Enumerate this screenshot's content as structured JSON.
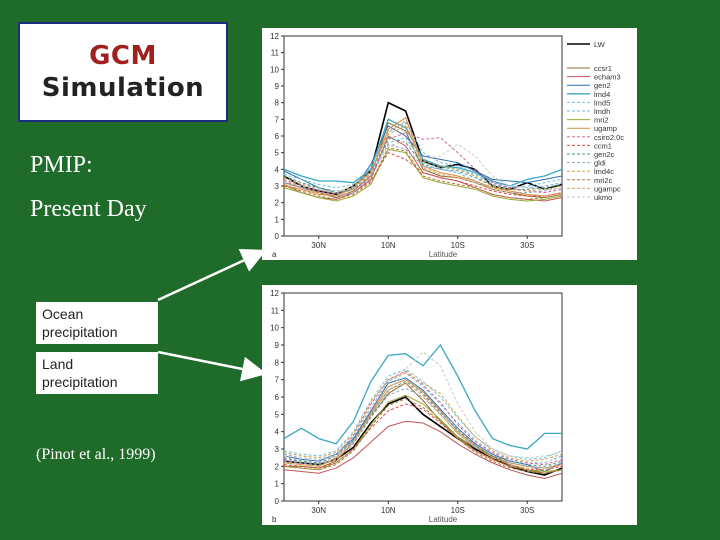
{
  "slide": {
    "title_line1": "GCM",
    "title_line2": "Simulation",
    "subtitle1": "PMIP:",
    "subtitle2": "Present Day",
    "ocean_label": "Ocean precipitation",
    "land_label": "Land precipitation",
    "citation": "(Pinot et al., 1999)",
    "colors": {
      "background": "#1f6b2a",
      "title_accent": "#a02020",
      "border": "#1a2d80"
    }
  },
  "chart_data": [
    {
      "type": "line",
      "panel_label": "a",
      "xlabel": "Latitude",
      "x": [
        40,
        35,
        30,
        25,
        20,
        15,
        10,
        5,
        0,
        -5,
        -10,
        -15,
        -20,
        -25,
        -30,
        -35,
        -40
      ],
      "x_ticks": [
        {
          "value": 30,
          "label": "30N"
        },
        {
          "value": 10,
          "label": "10N"
        },
        {
          "value": -10,
          "label": "10S"
        },
        {
          "value": -30,
          "label": "30S"
        }
      ],
      "ylim": [
        0,
        12
      ],
      "y_ticks": [
        0,
        1,
        2,
        3,
        4,
        5,
        6,
        7,
        8,
        9,
        10,
        11,
        12
      ],
      "xlim": [
        40,
        -40
      ],
      "legend_position": "right",
      "series": [
        {
          "name": "LW",
          "color": "#000000",
          "dash": "",
          "width": 1.6,
          "values": [
            3.6,
            3.0,
            2.7,
            2.5,
            3.0,
            3.9,
            8.0,
            7.5,
            4.5,
            4.1,
            4.3,
            4.0,
            3.0,
            2.8,
            3.2,
            2.8,
            3.1
          ]
        },
        {
          "name": "ccsr1",
          "color": "#8b6d2e",
          "dash": "",
          "width": 1,
          "values": [
            3.2,
            2.9,
            2.6,
            2.3,
            2.7,
            3.6,
            6.8,
            6.3,
            4.0,
            3.6,
            3.5,
            3.2,
            2.8,
            2.6,
            2.4,
            2.3,
            2.5
          ]
        },
        {
          "name": "echam3",
          "color": "#c25555",
          "dash": "",
          "width": 1,
          "values": [
            3.1,
            2.6,
            2.3,
            2.2,
            2.6,
            3.4,
            6.0,
            5.4,
            3.8,
            3.5,
            3.3,
            2.9,
            2.5,
            2.3,
            2.2,
            2.1,
            2.3
          ]
        },
        {
          "name": "gen2",
          "color": "#2f6db5",
          "dash": "",
          "width": 1,
          "values": [
            3.9,
            3.4,
            2.9,
            2.6,
            2.8,
            4.3,
            6.6,
            6.0,
            4.8,
            4.6,
            4.4,
            3.9,
            3.4,
            3.3,
            3.2,
            3.4,
            3.6
          ]
        },
        {
          "name": "lmd4",
          "color": "#3aa6c7",
          "dash": "",
          "width": 1.3,
          "values": [
            4.0,
            3.6,
            3.3,
            3.3,
            3.2,
            4.0,
            7.0,
            6.5,
            4.6,
            4.2,
            4.1,
            3.8,
            3.3,
            3.0,
            3.4,
            3.6,
            4.0
          ]
        },
        {
          "name": "lmd5",
          "color": "#6cc2d9",
          "dash": "3,2",
          "width": 1,
          "values": [
            3.7,
            3.4,
            3.1,
            2.9,
            3.1,
            3.8,
            5.6,
            5.9,
            4.4,
            4.1,
            4.0,
            3.7,
            3.1,
            2.9,
            3.0,
            3.2,
            3.4
          ]
        },
        {
          "name": "lmdh",
          "color": "#7fb2e0",
          "dash": "3,2",
          "width": 1,
          "values": [
            3.5,
            3.1,
            2.9,
            2.7,
            2.8,
            4.2,
            6.2,
            6.9,
            5.0,
            4.4,
            4.2,
            3.8,
            3.2,
            3.0,
            2.9,
            3.0,
            3.2
          ]
        },
        {
          "name": "mri2",
          "color": "#9aa832",
          "dash": "",
          "width": 1,
          "values": [
            2.9,
            2.6,
            2.3,
            2.1,
            2.4,
            3.1,
            5.2,
            5.0,
            3.5,
            3.2,
            3.0,
            2.8,
            2.4,
            2.2,
            2.1,
            2.2,
            2.4
          ]
        },
        {
          "name": "ugamp",
          "color": "#d98a3a",
          "dash": "",
          "width": 1,
          "values": [
            3.0,
            2.8,
            2.5,
            2.4,
            2.9,
            3.8,
            6.4,
            7.1,
            4.2,
            3.8,
            3.6,
            3.3,
            2.9,
            2.7,
            2.5,
            2.4,
            2.6
          ]
        },
        {
          "name": "csiro2.0c",
          "color": "#d36b8c",
          "dash": "3,2",
          "width": 1,
          "values": [
            3.4,
            3.0,
            2.7,
            2.5,
            2.9,
            3.6,
            5.8,
            6.2,
            5.8,
            5.9,
            5.0,
            4.0,
            3.2,
            2.9,
            2.7,
            2.6,
            2.8
          ]
        },
        {
          "name": "ccm1",
          "color": "#d94a4a",
          "dash": "3,2",
          "width": 1,
          "values": [
            3.3,
            2.9,
            2.6,
            2.4,
            2.6,
            3.3,
            5.0,
            4.6,
            3.8,
            3.5,
            3.3,
            3.0,
            2.7,
            2.5,
            2.4,
            2.4,
            2.6
          ]
        },
        {
          "name": "gen2c",
          "color": "#4a9a8a",
          "dash": "3,2",
          "width": 1,
          "values": [
            3.6,
            3.2,
            2.9,
            2.6,
            2.8,
            3.7,
            5.9,
            5.6,
            4.3,
            4.0,
            3.9,
            3.5,
            3.0,
            2.8,
            2.8,
            2.9,
            3.1
          ]
        },
        {
          "name": "gldi",
          "color": "#8aa6c9",
          "dash": "3,2",
          "width": 1,
          "values": [
            3.2,
            2.9,
            2.6,
            2.4,
            2.6,
            3.5,
            5.5,
            5.2,
            4.2,
            4.0,
            3.8,
            3.3,
            2.8,
            2.6,
            2.6,
            2.7,
            2.9
          ]
        },
        {
          "name": "lmd4c",
          "color": "#d4a24a",
          "dash": "3,2",
          "width": 1,
          "values": [
            3.5,
            3.1,
            2.8,
            2.6,
            3.0,
            3.9,
            6.1,
            6.6,
            4.5,
            4.2,
            4.0,
            3.6,
            3.0,
            2.8,
            2.7,
            2.8,
            3.0
          ]
        },
        {
          "name": "mri2c",
          "color": "#b07a3a",
          "dash": "3,2",
          "width": 1,
          "values": [
            3.0,
            2.7,
            2.4,
            2.2,
            2.5,
            3.2,
            5.3,
            5.1,
            3.6,
            3.3,
            3.1,
            2.9,
            2.5,
            2.3,
            2.2,
            2.3,
            2.5
          ]
        },
        {
          "name": "ugampc",
          "color": "#e0a060",
          "dash": "3,2",
          "width": 1,
          "values": [
            3.1,
            2.8,
            2.6,
            2.4,
            2.8,
            3.7,
            6.3,
            6.8,
            4.1,
            3.7,
            3.5,
            3.2,
            2.8,
            2.6,
            2.5,
            2.4,
            2.6
          ]
        },
        {
          "name": "ukmo",
          "color": "#c9c9c9",
          "dash": "3,2",
          "width": 1,
          "values": [
            3.3,
            3.0,
            2.8,
            2.6,
            2.9,
            3.8,
            5.4,
            5.7,
            4.6,
            4.8,
            5.5,
            4.8,
            3.6,
            3.0,
            2.9,
            2.8,
            2.9
          ]
        }
      ]
    },
    {
      "type": "line",
      "panel_label": "b",
      "xlabel": "Latitude",
      "x": [
        40,
        35,
        30,
        25,
        20,
        15,
        10,
        5,
        0,
        -5,
        -10,
        -15,
        -20,
        -25,
        -30,
        -35,
        -40
      ],
      "x_ticks": [
        {
          "value": 30,
          "label": "30N"
        },
        {
          "value": 10,
          "label": "10N"
        },
        {
          "value": -10,
          "label": "10S"
        },
        {
          "value": -30,
          "label": "30S"
        }
      ],
      "ylim": [
        0,
        12
      ],
      "y_ticks": [
        0,
        1,
        2,
        3,
        4,
        5,
        6,
        7,
        8,
        9,
        10,
        11,
        12
      ],
      "xlim": [
        40,
        -40
      ],
      "series": [
        {
          "name": "LW",
          "color": "#000000",
          "dash": "",
          "width": 1.6,
          "values": [
            2.3,
            2.2,
            2.1,
            2.4,
            3.1,
            4.5,
            5.6,
            6.0,
            5.0,
            4.3,
            3.6,
            3.0,
            2.5,
            2.0,
            1.7,
            1.5,
            1.9
          ]
        },
        {
          "name": "ccsr1",
          "color": "#8b6d2e",
          "dash": "",
          "width": 1,
          "values": [
            2.0,
            2.0,
            1.9,
            2.3,
            3.4,
            4.9,
            6.2,
            6.8,
            5.8,
            4.6,
            3.7,
            3.1,
            2.6,
            2.1,
            1.8,
            1.6,
            1.8
          ]
        },
        {
          "name": "echam3",
          "color": "#c25555",
          "dash": "",
          "width": 1,
          "values": [
            1.8,
            1.7,
            1.6,
            1.9,
            2.5,
            3.4,
            4.3,
            4.6,
            4.5,
            4.0,
            3.3,
            2.7,
            2.2,
            1.8,
            1.5,
            1.3,
            1.6
          ]
        },
        {
          "name": "gen2",
          "color": "#2f6db5",
          "dash": "",
          "width": 1,
          "values": [
            2.6,
            2.4,
            2.3,
            2.7,
            3.6,
            5.2,
            6.8,
            7.1,
            6.4,
            5.3,
            4.2,
            3.3,
            2.7,
            2.3,
            2.1,
            1.7,
            2.2
          ]
        },
        {
          "name": "lmd4",
          "color": "#3aa6c7",
          "dash": "",
          "width": 1.3,
          "values": [
            3.6,
            4.2,
            3.6,
            3.3,
            4.6,
            6.9,
            8.4,
            8.5,
            7.8,
            9.0,
            7.2,
            5.2,
            3.6,
            3.2,
            3.0,
            3.9,
            3.9
          ]
        },
        {
          "name": "lmd5",
          "color": "#6cc2d9",
          "dash": "3,2",
          "width": 1,
          "values": [
            2.9,
            2.7,
            2.6,
            2.9,
            4.0,
            5.8,
            7.2,
            7.6,
            6.9,
            6.0,
            4.8,
            3.7,
            3.0,
            2.6,
            2.4,
            2.5,
            2.9
          ]
        },
        {
          "name": "lmdh",
          "color": "#7fb2e0",
          "dash": "3,2",
          "width": 1,
          "values": [
            2.7,
            2.5,
            2.4,
            2.7,
            3.7,
            5.4,
            6.9,
            7.4,
            6.6,
            5.6,
            4.5,
            3.5,
            2.8,
            2.4,
            2.2,
            2.2,
            2.6
          ]
        },
        {
          "name": "mri2",
          "color": "#9aa832",
          "dash": "",
          "width": 1,
          "values": [
            2.0,
            1.9,
            1.8,
            2.2,
            3.0,
            4.4,
            5.7,
            6.1,
            5.6,
            4.7,
            3.7,
            2.9,
            2.4,
            2.0,
            1.8,
            1.7,
            1.8
          ]
        },
        {
          "name": "ugamp",
          "color": "#d98a3a",
          "dash": "",
          "width": 1,
          "values": [
            2.2,
            2.1,
            2.0,
            2.5,
            3.5,
            5.1,
            6.6,
            7.0,
            6.3,
            5.2,
            4.0,
            3.2,
            2.6,
            2.2,
            2.0,
            1.9,
            2.1
          ]
        },
        {
          "name": "csiro2.0c",
          "color": "#d36b8c",
          "dash": "3,2",
          "width": 1,
          "values": [
            2.4,
            2.3,
            2.2,
            2.6,
            3.8,
            5.6,
            7.0,
            7.5,
            6.7,
            5.7,
            4.4,
            3.4,
            2.8,
            2.4,
            2.2,
            2.1,
            2.4
          ]
        },
        {
          "name": "ccm1",
          "color": "#d94a4a",
          "dash": "3,2",
          "width": 1,
          "values": [
            2.1,
            2.0,
            1.9,
            2.2,
            3.0,
            4.2,
            5.2,
            5.6,
            5.3,
            4.5,
            3.6,
            2.9,
            2.4,
            2.0,
            1.8,
            1.8,
            2.0
          ]
        },
        {
          "name": "gen2c",
          "color": "#4a9a8a",
          "dash": "3,2",
          "width": 1,
          "values": [
            2.5,
            2.3,
            2.2,
            2.6,
            3.5,
            5.0,
            6.4,
            6.9,
            6.2,
            5.1,
            4.1,
            3.2,
            2.6,
            2.3,
            2.1,
            2.0,
            2.3
          ]
        },
        {
          "name": "gldi",
          "color": "#8aa6c9",
          "dash": "3,2",
          "width": 1,
          "values": [
            2.3,
            2.2,
            2.1,
            2.4,
            3.3,
            4.8,
            6.1,
            6.5,
            6.0,
            5.0,
            3.9,
            3.1,
            2.5,
            2.2,
            2.0,
            1.9,
            2.2
          ]
        },
        {
          "name": "lmd4c",
          "color": "#d4a24a",
          "dash": "3,2",
          "width": 1,
          "values": [
            2.8,
            2.6,
            2.5,
            2.8,
            3.9,
            5.7,
            7.0,
            7.4,
            6.8,
            6.2,
            4.9,
            3.7,
            2.9,
            2.5,
            2.3,
            2.4,
            2.7
          ]
        },
        {
          "name": "mri2c",
          "color": "#b07a3a",
          "dash": "3,2",
          "width": 1,
          "values": [
            2.0,
            1.9,
            1.8,
            2.1,
            2.9,
            4.3,
            5.5,
            5.9,
            5.4,
            4.6,
            3.6,
            2.8,
            2.3,
            1.9,
            1.7,
            1.6,
            1.8
          ]
        },
        {
          "name": "ugampc",
          "color": "#e0a060",
          "dash": "3,2",
          "width": 1,
          "values": [
            2.2,
            2.1,
            2.0,
            2.4,
            3.4,
            5.0,
            6.4,
            6.8,
            6.1,
            5.0,
            3.9,
            3.1,
            2.5,
            2.1,
            1.9,
            1.8,
            2.1
          ]
        },
        {
          "name": "ukmo",
          "color": "#c9c9c9",
          "dash": "3,2",
          "width": 1,
          "values": [
            2.6,
            2.5,
            2.4,
            2.6,
            3.4,
            4.9,
            6.3,
            7.6,
            8.6,
            7.8,
            5.6,
            4.0,
            3.0,
            2.6,
            2.5,
            2.6,
            2.8
          ]
        }
      ]
    }
  ]
}
